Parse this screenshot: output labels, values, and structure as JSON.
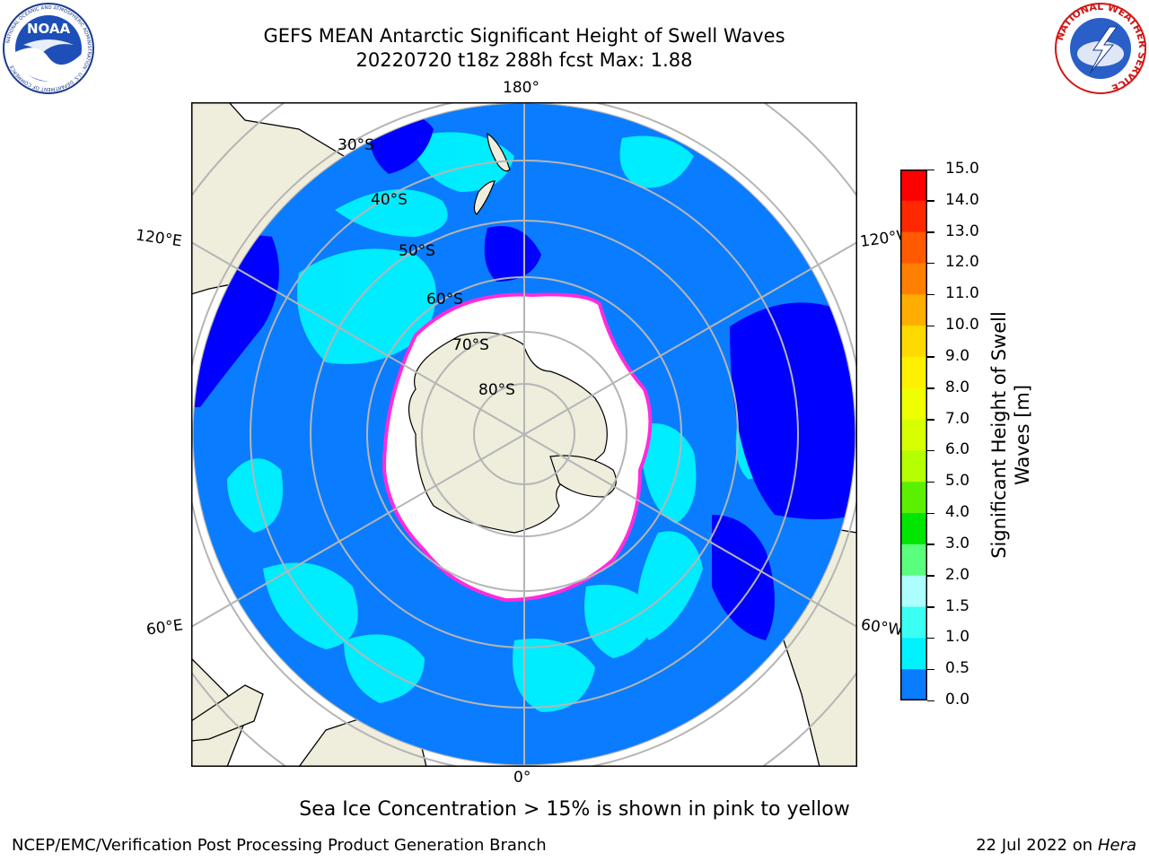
{
  "header": {
    "title_line1": "GEFS MEAN Antarctic Significant Height of Swell Waves",
    "title_line2": "20220720 t18z 288h fcst   Max: 1.88"
  },
  "logos": {
    "left": "NOAA",
    "left_ring": "NATIONAL OCEANIC AND ATMOSPHERIC ADMINISTRATION · U.S. DEPARTMENT OF COMMERCE",
    "right_ring": "NATIONAL WEATHER SERVICE"
  },
  "map": {
    "projection": "south-polar-stereographic",
    "lon_labels": [
      "180°",
      "120°E",
      "120°W",
      "60°E",
      "60°W",
      "0°"
    ],
    "lat_labels": [
      "30°S",
      "40°S",
      "50°S",
      "60°S",
      "70°S",
      "80°S"
    ],
    "colors": {
      "land": "#efeddc",
      "ocean_default": "#0a7cff",
      "ocean_low": "#0000ff",
      "ocean_mid": "#00f2ff",
      "sea_ice": "#ffffff",
      "ice_edge": "#ff2bdc",
      "grid": "#b5b5b5"
    }
  },
  "colorbar": {
    "title_line1": "Significant Height of Swell",
    "title_line2": "Waves [m]",
    "ticks": [
      "15.0",
      "14.0",
      "13.0",
      "12.0",
      "11.0",
      "10.0",
      "9.0",
      "8.0",
      "7.0",
      "6.0",
      "5.0",
      "4.0",
      "3.0",
      "2.0",
      "1.5",
      "1.0",
      "0.5",
      "0.0"
    ],
    "colors_top_to_bottom": [
      "#ff0000",
      "#ff2800",
      "#ff5a00",
      "#ff8000",
      "#ffae00",
      "#ffda00",
      "#fff000",
      "#f0ff00",
      "#d8ff00",
      "#b4ff00",
      "#5af000",
      "#00e600",
      "#5aff7e",
      "#adffff",
      "#3bfff3",
      "#00f2ff",
      "#0a7cff",
      "#0000ff"
    ]
  },
  "footer": {
    "note": "Sea Ice Concentration > 15% is shown in pink to yellow",
    "left": "NCEP/EMC/Verification Post Processing Product Generation Branch",
    "right_date": "22 Jul 2022 on",
    "right_machine": "Hera"
  }
}
